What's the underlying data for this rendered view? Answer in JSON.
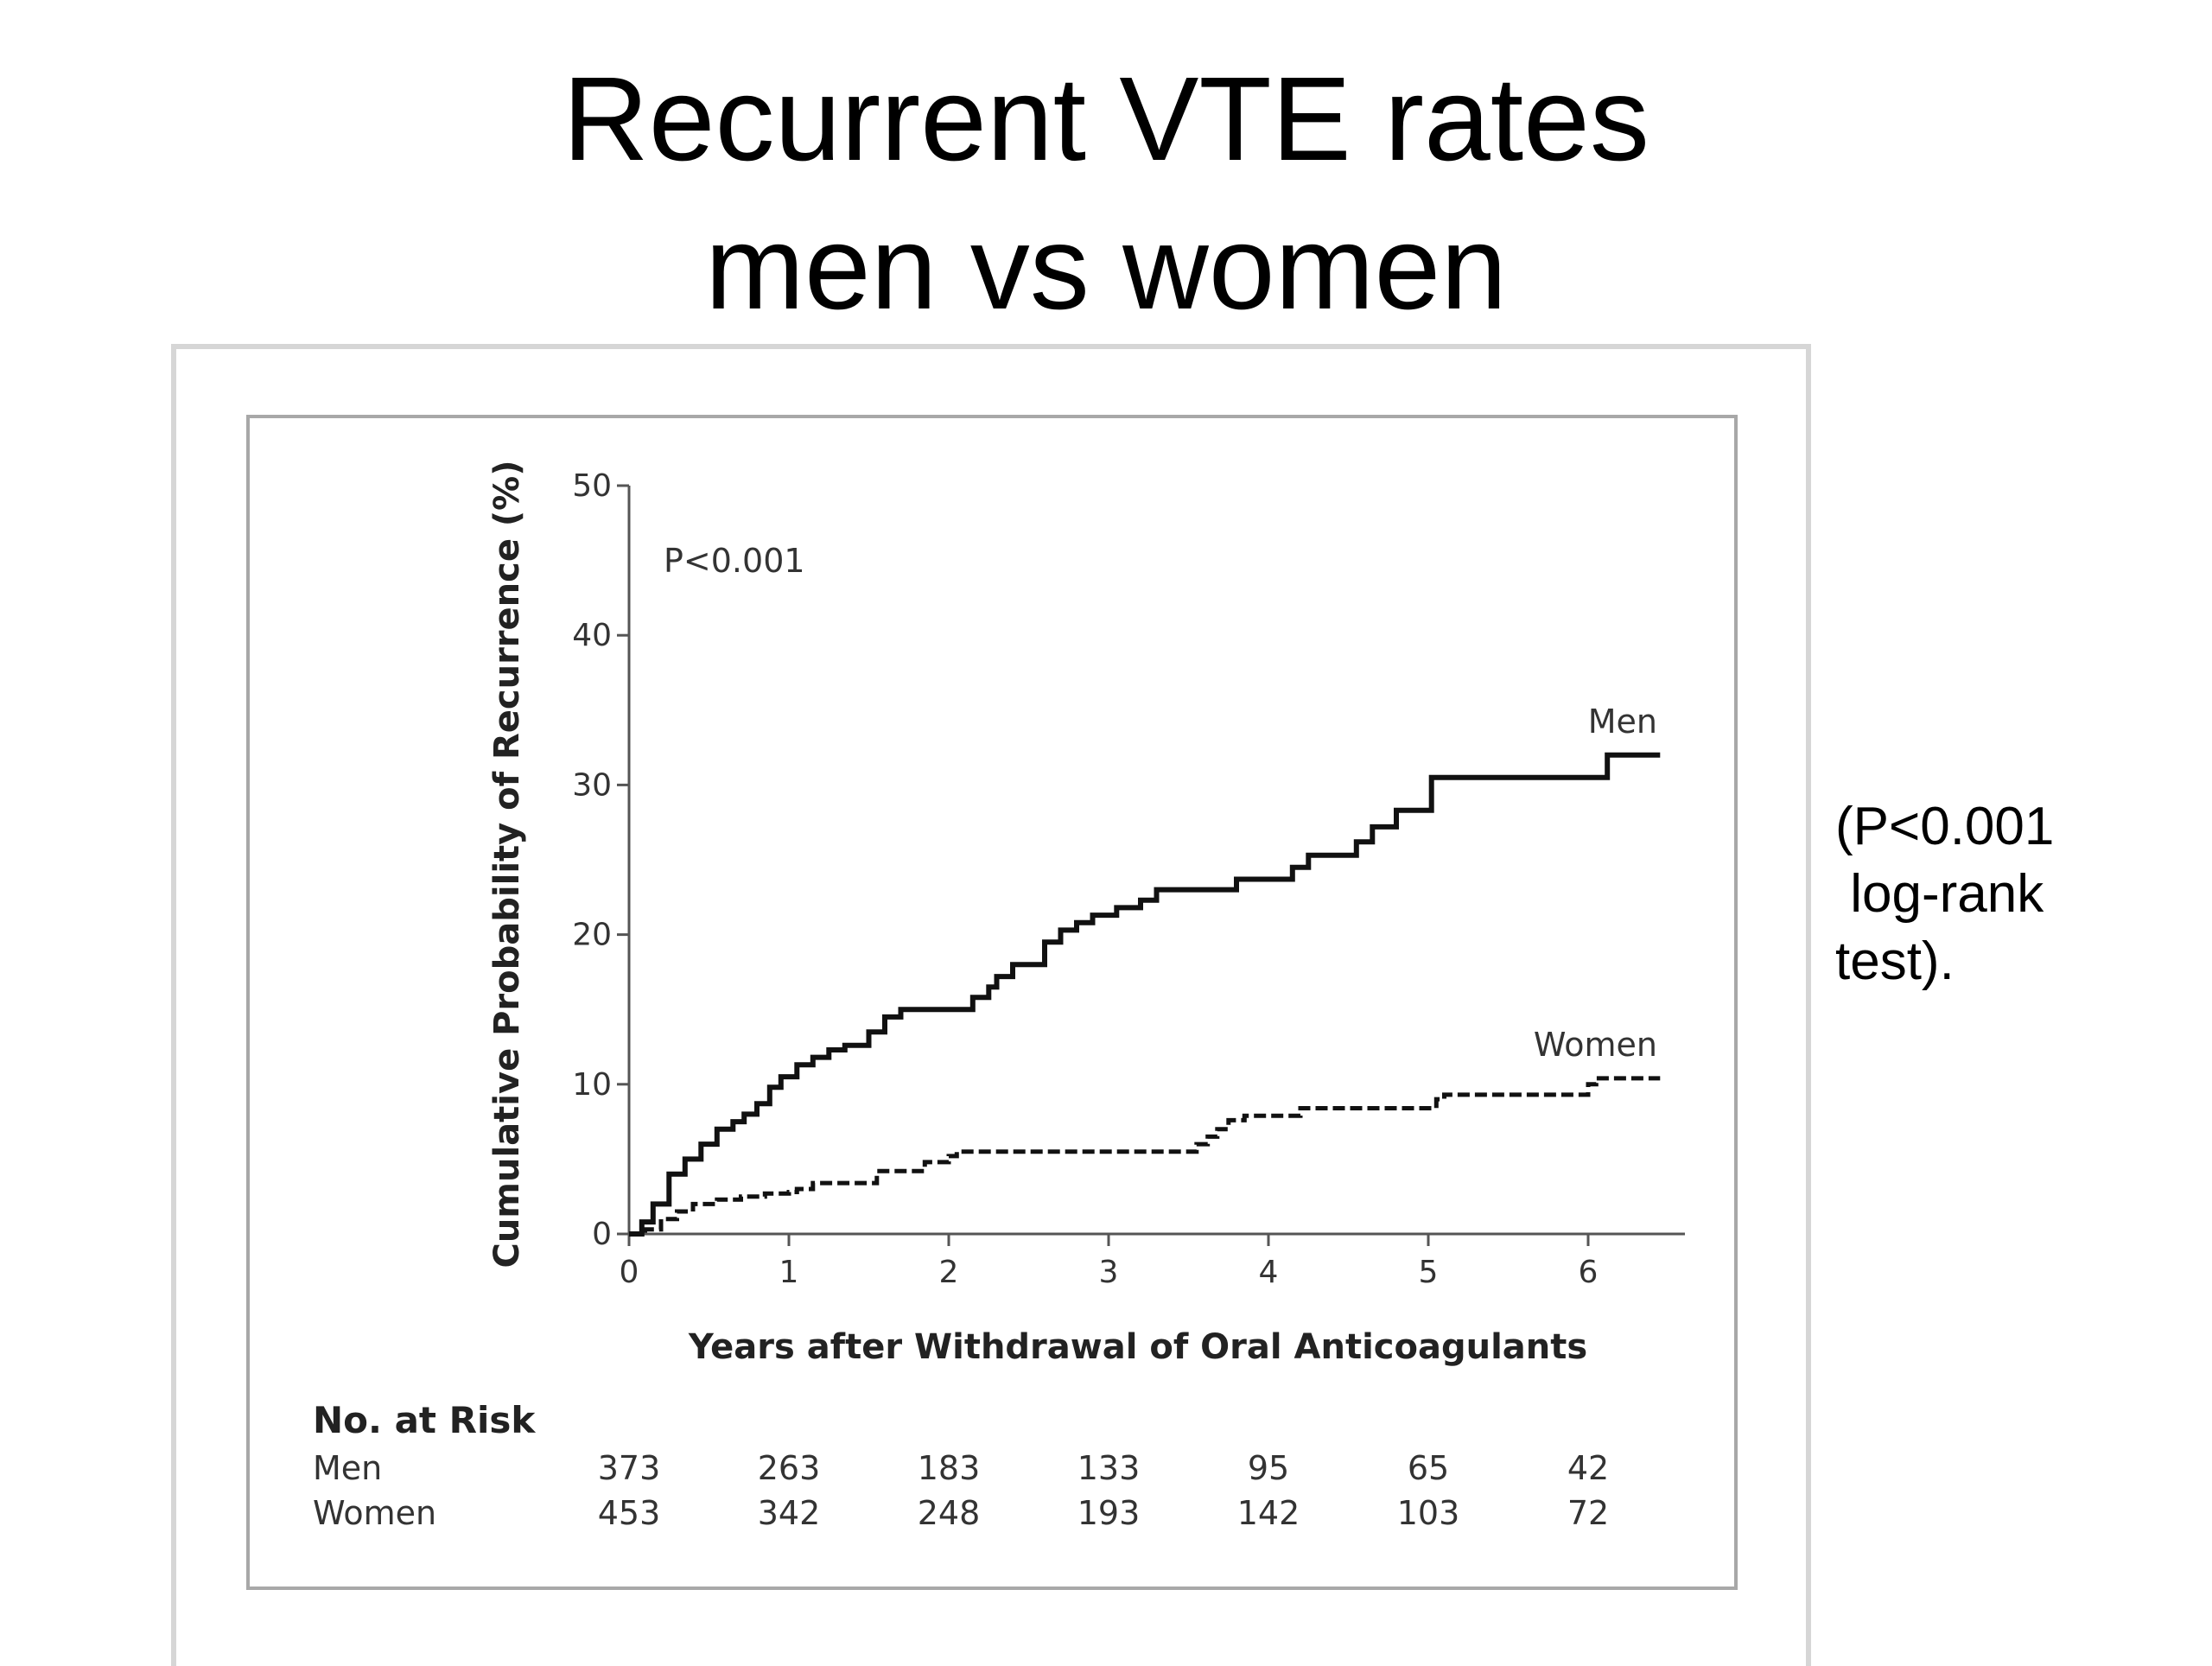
{
  "slide": {
    "title_line1": "Recurrent VTE rates",
    "title_line2": "men vs women",
    "note_line1": "(P<0.001",
    "note_line2": " log-rank",
    "note_line3": "test)."
  },
  "chart_data": {
    "type": "line",
    "title": "",
    "xlabel": "Years after Withdrawal of Oral Anticoagulants",
    "ylabel": "Cumulative Probability of Recurrence (%)",
    "xlim": [
      0,
      6.5
    ],
    "ylim": [
      0,
      50
    ],
    "x_ticks": [
      0,
      1,
      2,
      3,
      4,
      5,
      6
    ],
    "y_ticks": [
      0,
      10,
      20,
      30,
      40,
      50
    ],
    "annotation": "P<0.001",
    "series": [
      {
        "name": "Men",
        "style": "solid",
        "points": [
          [
            0,
            0
          ],
          [
            0.08,
            0.8
          ],
          [
            0.15,
            2
          ],
          [
            0.25,
            4
          ],
          [
            0.35,
            5
          ],
          [
            0.45,
            6
          ],
          [
            0.55,
            7
          ],
          [
            0.65,
            7.5
          ],
          [
            0.72,
            8
          ],
          [
            0.8,
            8.7
          ],
          [
            0.88,
            9.8
          ],
          [
            0.95,
            10.5
          ],
          [
            1.05,
            11.3
          ],
          [
            1.15,
            11.8
          ],
          [
            1.25,
            12.3
          ],
          [
            1.35,
            12.6
          ],
          [
            1.5,
            13.5
          ],
          [
            1.6,
            14.5
          ],
          [
            1.7,
            15
          ],
          [
            2.0,
            15
          ],
          [
            2.15,
            15.8
          ],
          [
            2.25,
            16.5
          ],
          [
            2.3,
            17.2
          ],
          [
            2.4,
            18
          ],
          [
            2.55,
            18
          ],
          [
            2.6,
            19.5
          ],
          [
            2.7,
            20.3
          ],
          [
            2.8,
            20.8
          ],
          [
            2.9,
            21.3
          ],
          [
            3.0,
            21.3
          ],
          [
            3.05,
            21.8
          ],
          [
            3.2,
            22.3
          ],
          [
            3.3,
            23
          ],
          [
            3.75,
            23
          ],
          [
            3.8,
            23.7
          ],
          [
            4.1,
            23.7
          ],
          [
            4.15,
            24.5
          ],
          [
            4.25,
            25.3
          ],
          [
            4.5,
            25.3
          ],
          [
            4.55,
            26.2
          ],
          [
            4.65,
            27.2
          ],
          [
            4.8,
            28.3
          ],
          [
            5.0,
            28.3
          ],
          [
            5.02,
            30.5
          ],
          [
            5.95,
            30.5
          ],
          [
            6.1,
            30.5
          ],
          [
            6.12,
            32
          ],
          [
            6.45,
            32
          ]
        ]
      },
      {
        "name": "Women",
        "style": "dashed",
        "points": [
          [
            0,
            0
          ],
          [
            0.1,
            0.3
          ],
          [
            0.2,
            1
          ],
          [
            0.3,
            1.5
          ],
          [
            0.4,
            2
          ],
          [
            0.55,
            2.3
          ],
          [
            0.7,
            2.5
          ],
          [
            0.85,
            2.7
          ],
          [
            1.0,
            2.8
          ],
          [
            1.05,
            3
          ],
          [
            1.15,
            3.4
          ],
          [
            1.5,
            3.4
          ],
          [
            1.55,
            4.2
          ],
          [
            1.8,
            4.2
          ],
          [
            1.85,
            4.8
          ],
          [
            2.0,
            5.2
          ],
          [
            2.05,
            5.5
          ],
          [
            2.3,
            5.5
          ],
          [
            3.5,
            5.5
          ],
          [
            3.55,
            6
          ],
          [
            3.62,
            6.5
          ],
          [
            3.68,
            7
          ],
          [
            3.75,
            7.6
          ],
          [
            3.85,
            7.9
          ],
          [
            4.15,
            7.9
          ],
          [
            4.2,
            8.4
          ],
          [
            5.0,
            8.4
          ],
          [
            5.05,
            9
          ],
          [
            5.1,
            9.3
          ],
          [
            5.95,
            9.3
          ],
          [
            6.0,
            10
          ],
          [
            6.05,
            10.4
          ],
          [
            6.45,
            10.4
          ]
        ]
      }
    ],
    "series_labels": [
      "Men",
      "Women"
    ],
    "risk_table": {
      "header": "No. at Risk",
      "rows": [
        {
          "label": "Men",
          "values": [
            "373",
            "263",
            "183",
            "133",
            "95",
            "65",
            "42"
          ]
        },
        {
          "label": "Women",
          "values": [
            "453",
            "342",
            "248",
            "193",
            "142",
            "103",
            "72"
          ]
        }
      ]
    },
    "colors": {
      "line": "#111111",
      "axis": "#555555",
      "frame": "#a8a8a8"
    }
  }
}
